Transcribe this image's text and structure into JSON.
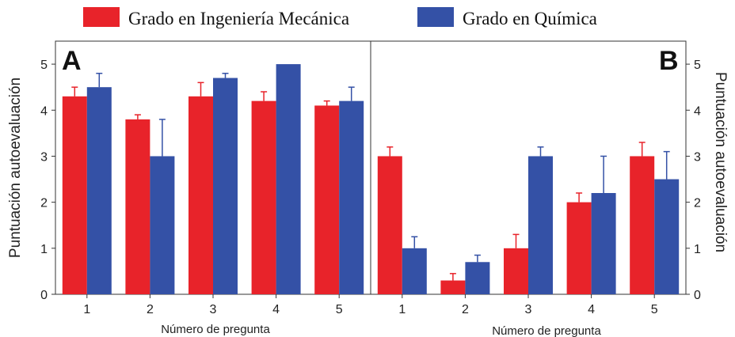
{
  "legend": {
    "series_a": "Grado en Ingeniería Mecánica",
    "series_b": "Grado en Química"
  },
  "colors": {
    "series_a": "#e8232a",
    "series_b": "#3451a6",
    "error": "#3451a6",
    "error_a": "#e8232a"
  },
  "chart_data": [
    {
      "type": "bar",
      "panel_label": "A",
      "xlabel": "Número de pregunta",
      "ylabel": "Puntuación autoevaluación",
      "categories": [
        "1",
        "2",
        "3",
        "4",
        "5"
      ],
      "ylim": [
        0,
        5.5
      ],
      "yticks": [
        0,
        1,
        2,
        3,
        4,
        5
      ],
      "series": [
        {
          "name": "Grado en Ingeniería Mecánica",
          "values": [
            4.3,
            3.8,
            4.3,
            4.2,
            4.1
          ],
          "errors": [
            0.2,
            0.1,
            0.3,
            0.2,
            0.1
          ]
        },
        {
          "name": "Grado en Química",
          "values": [
            4.5,
            3.0,
            4.7,
            5.0,
            4.2
          ],
          "errors": [
            0.3,
            0.8,
            0.1,
            0.0,
            0.3
          ]
        }
      ]
    },
    {
      "type": "bar",
      "panel_label": "B",
      "xlabel": "Número de pregunta",
      "ylabel": "Puntuación autoevaluación",
      "categories": [
        "1",
        "2",
        "3",
        "4",
        "5"
      ],
      "ylim": [
        0,
        5.5
      ],
      "yticks": [
        0,
        1,
        2,
        3,
        4,
        5
      ],
      "series": [
        {
          "name": "Grado en Ingeniería Mecánica",
          "values": [
            3.0,
            0.3,
            1.0,
            2.0,
            3.0
          ],
          "errors": [
            0.2,
            0.15,
            0.3,
            0.2,
            0.3
          ]
        },
        {
          "name": "Grado en Química",
          "values": [
            1.0,
            0.7,
            3.0,
            2.2,
            2.5
          ],
          "errors": [
            0.25,
            0.15,
            0.2,
            0.8,
            0.6
          ]
        }
      ]
    }
  ]
}
